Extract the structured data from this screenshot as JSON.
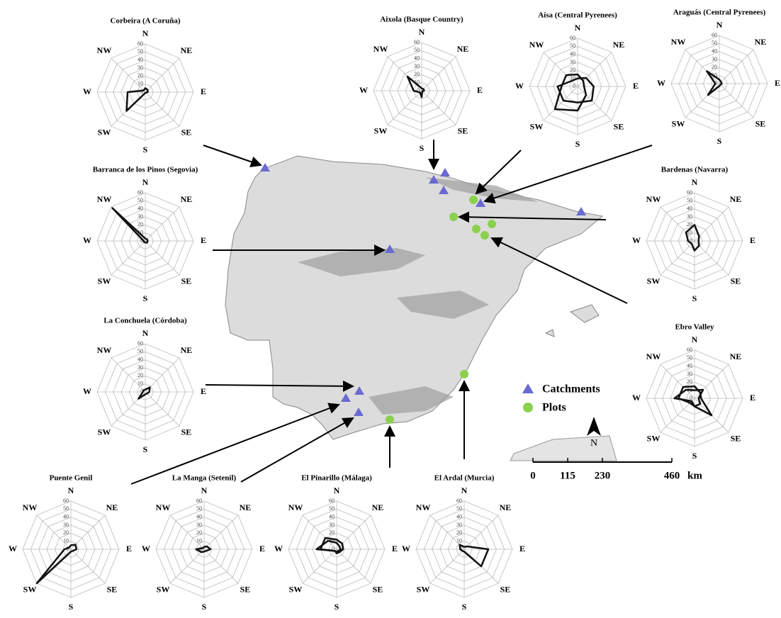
{
  "chart_data": [
    {
      "type": "radar",
      "title": "Corbeira (A Coruña)",
      "categories": [
        "N",
        "NE",
        "E",
        "SE",
        "S",
        "SW",
        "W",
        "NW"
      ],
      "rlim": [
        0,
        60
      ],
      "rticks": [
        0,
        10,
        20,
        30,
        40,
        50,
        60
      ],
      "grid": true,
      "series": [
        {
          "color": "#111111",
          "values": [
            5,
            4,
            3,
            1,
            1,
            33,
            22,
            3
          ]
        }
      ]
    },
    {
      "type": "radar",
      "title": "Aixola (Basque Country)",
      "categories": [
        "N",
        "NE",
        "E",
        "SE",
        "S",
        "SW",
        "W",
        "NW"
      ],
      "rlim": [
        0,
        60
      ],
      "rticks": [
        0,
        10,
        20,
        30,
        40,
        50,
        60
      ],
      "grid": true,
      "series": [
        {
          "color": "#111111",
          "values": [
            3,
            3,
            3,
            1,
            8,
            3,
            10,
            25
          ]
        }
      ]
    },
    {
      "type": "radar",
      "title": "Aísa (Central Pyrenees)",
      "categories": [
        "N",
        "NE",
        "E",
        "SE",
        "S",
        "SW",
        "W",
        "NW"
      ],
      "rlim": [
        0,
        60
      ],
      "rticks": [
        0,
        10,
        20,
        30,
        40,
        50,
        60
      ],
      "grid": true,
      "series": [
        {
          "color": "#111111",
          "values": [
            15,
            10,
            8,
            15,
            30,
            40,
            20,
            20
          ]
        },
        {
          "color": "#111111",
          "values": [
            10,
            15,
            20,
            25,
            20,
            25,
            25,
            10
          ]
        }
      ]
    },
    {
      "type": "radar",
      "title": "Araguás (Central Pyrenees)",
      "categories": [
        "N",
        "NE",
        "E",
        "SE",
        "S",
        "SW",
        "W",
        "NW"
      ],
      "rlim": [
        0,
        60
      ],
      "rticks": [
        0,
        10,
        20,
        30,
        40,
        50,
        60
      ],
      "grid": true,
      "series": [
        {
          "color": "#111111",
          "values": [
            5,
            3,
            3,
            2,
            3,
            20,
            5,
            22
          ]
        }
      ]
    },
    {
      "type": "radar",
      "title": "Barranca de los Pinos (Segovia)",
      "categories": [
        "N",
        "NE",
        "E",
        "SE",
        "S",
        "SW",
        "W",
        "NW"
      ],
      "rlim": [
        0,
        60
      ],
      "rticks": [
        0,
        10,
        20,
        30,
        40,
        50,
        60
      ],
      "grid": true,
      "series": [
        {
          "color": "#111111",
          "values": [
            3,
            3,
            3,
            3,
            2,
            2,
            2,
            58
          ]
        }
      ]
    },
    {
      "type": "radar",
      "title": "Bardenas (Navarra)",
      "categories": [
        "N",
        "NE",
        "E",
        "SE",
        "S",
        "SW",
        "W",
        "NW"
      ],
      "rlim": [
        0,
        60
      ],
      "rticks": [
        0,
        10,
        20,
        30,
        40,
        50,
        60
      ],
      "grid": true,
      "series": [
        {
          "color": "#111111",
          "values": [
            20,
            8,
            5,
            8,
            12,
            5,
            8,
            15
          ]
        }
      ]
    },
    {
      "type": "radar",
      "title": "La Conchuela (Córdoba)",
      "categories": [
        "N",
        "NE",
        "E",
        "SE",
        "S",
        "SW",
        "W",
        "NW"
      ],
      "rlim": [
        0,
        60
      ],
      "rticks": [
        0,
        10,
        20,
        30,
        40,
        50,
        60
      ],
      "grid": true,
      "series": [
        {
          "color": "#111111",
          "values": [
            3,
            8,
            5,
            3,
            3,
            12,
            3,
            3
          ]
        }
      ]
    },
    {
      "type": "radar",
      "title": "Ebro Valley",
      "categories": [
        "N",
        "NE",
        "E",
        "SE",
        "S",
        "SW",
        "W",
        "NW"
      ],
      "rlim": [
        0,
        60
      ],
      "rticks": [
        0,
        10,
        20,
        30,
        40,
        50,
        60
      ],
      "grid": true,
      "series": [
        {
          "color": "#111111",
          "values": [
            15,
            10,
            8,
            30,
            10,
            8,
            20,
            20
          ]
        },
        {
          "color": "#111111",
          "values": [
            10,
            15,
            5,
            10,
            10,
            5,
            25,
            15
          ]
        }
      ]
    },
    {
      "type": "radar",
      "title": "Puente Genil",
      "categories": [
        "N",
        "NE",
        "E",
        "SE",
        "S",
        "SW",
        "W",
        "NW"
      ],
      "rlim": [
        0,
        60
      ],
      "rticks": [
        0,
        10,
        20,
        30,
        40,
        50,
        60
      ],
      "grid": true,
      "series": [
        {
          "color": "#111111",
          "values": [
            5,
            8,
            7,
            3,
            3,
            60,
            8,
            3
          ]
        }
      ]
    },
    {
      "type": "radar",
      "title": "La Manga (Setenil)",
      "categories": [
        "N",
        "NE",
        "E",
        "SE",
        "S",
        "SW",
        "W",
        "NW"
      ],
      "rlim": [
        0,
        60
      ],
      "rticks": [
        0,
        10,
        20,
        30,
        40,
        50,
        60
      ],
      "grid": true,
      "series": [
        {
          "color": "#111111",
          "values": [
            3,
            5,
            8,
            3,
            3,
            5,
            10,
            2
          ]
        }
      ]
    },
    {
      "type": "radar",
      "title": "El Pinarillo (Málaga)",
      "categories": [
        "N",
        "NE",
        "E",
        "SE",
        "S",
        "SW",
        "W",
        "NW"
      ],
      "rlim": [
        0,
        60
      ],
      "rticks": [
        0,
        10,
        20,
        30,
        40,
        50,
        60
      ],
      "grid": true,
      "series": [
        {
          "color": "#111111",
          "values": [
            12,
            10,
            8,
            5,
            5,
            3,
            20,
            20
          ]
        },
        {
          "color": "#111111",
          "values": [
            8,
            5,
            5,
            3,
            3,
            3,
            25,
            15
          ]
        }
      ]
    },
    {
      "type": "radar",
      "title": "El Ardal (Murcia)",
      "categories": [
        "N",
        "NE",
        "E",
        "SE",
        "S",
        "SW",
        "W",
        "NW"
      ],
      "rlim": [
        0,
        60
      ],
      "rticks": [
        0,
        10,
        20,
        30,
        40,
        50,
        60
      ],
      "grid": true,
      "series": [
        {
          "color": "#111111",
          "values": [
            3,
            5,
            30,
            30,
            3,
            3,
            5,
            8
          ]
        }
      ]
    }
  ],
  "map": {
    "legend": {
      "catchments": "Catchments",
      "plots": "Plots"
    },
    "north": "N",
    "scale": {
      "ticks": [
        0,
        115,
        230,
        460
      ],
      "unit": "km"
    }
  }
}
